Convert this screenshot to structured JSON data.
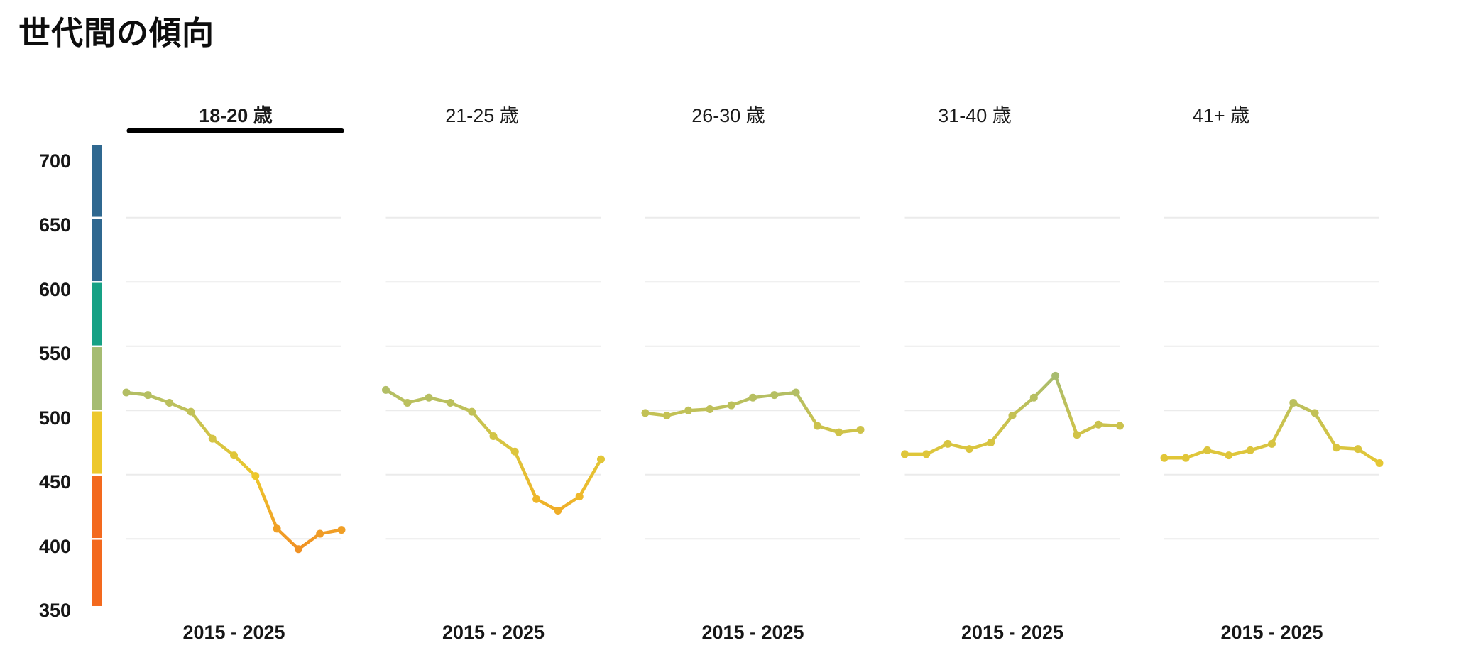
{
  "title": "世代間の傾向",
  "colors": {
    "background": "#ffffff",
    "text": "#141414",
    "gridline": "#ebebeb",
    "selected_underline": "#000000",
    "band_orange": "#f3691e",
    "band_yellow": "#edc82c",
    "band_green": "#a5bc72",
    "band_teal": "#16a185",
    "band_blue": "#2f6890"
  },
  "chart_data": {
    "type": "line",
    "title": "世代間の傾向",
    "x": [
      2015,
      2016,
      2017,
      2018,
      2019,
      2020,
      2021,
      2022,
      2023,
      2024,
      2025
    ],
    "x_axis_label": "2015 - 2025",
    "yticks": [
      700,
      650,
      600,
      550,
      500,
      450,
      400,
      350
    ],
    "gridline_values": [
      650,
      600,
      550,
      500,
      450,
      400
    ],
    "ylim": [
      345,
      710
    ],
    "grid": true,
    "legend_position": "none",
    "series": [
      {
        "name": "18-20 歳",
        "selected": true,
        "values": [
          514,
          512,
          506,
          499,
          478,
          465,
          449,
          408,
          392,
          404,
          407
        ]
      },
      {
        "name": "21-25 歳",
        "selected": false,
        "values": [
          516,
          506,
          510,
          506,
          499,
          480,
          468,
          431,
          422,
          433,
          462
        ]
      },
      {
        "name": "26-30 歳",
        "selected": false,
        "values": [
          498,
          496,
          500,
          501,
          504,
          510,
          512,
          514,
          488,
          483,
          485
        ]
      },
      {
        "name": "31-40 歳",
        "selected": false,
        "values": [
          466,
          466,
          474,
          470,
          475,
          496,
          510,
          527,
          481,
          489,
          488
        ]
      },
      {
        "name": "41+ 歳",
        "selected": false,
        "values": [
          463,
          463,
          469,
          465,
          469,
          474,
          506,
          498,
          471,
          470,
          459
        ]
      }
    ],
    "color_scale_anchors": [
      [
        350,
        "#f3691e"
      ],
      [
        450,
        "#edc82c"
      ],
      [
        530,
        "#a5bc72"
      ],
      [
        580,
        "#16a185"
      ],
      [
        645,
        "#2f6890"
      ]
    ],
    "axis_color_bands": [
      {
        "from": 347,
        "to": 400,
        "color": "#f3691e"
      },
      {
        "from": 400,
        "to": 450,
        "color": "#f3691e"
      },
      {
        "from": 450,
        "to": 500,
        "color": "#edc82c"
      },
      {
        "from": 500,
        "to": 550,
        "color": "#a5bc72"
      },
      {
        "from": 550,
        "to": 600,
        "color": "#16a185"
      },
      {
        "from": 600,
        "to": 650,
        "color": "#2f6890"
      },
      {
        "from": 650,
        "to": 707,
        "color": "#2f6890"
      }
    ]
  }
}
